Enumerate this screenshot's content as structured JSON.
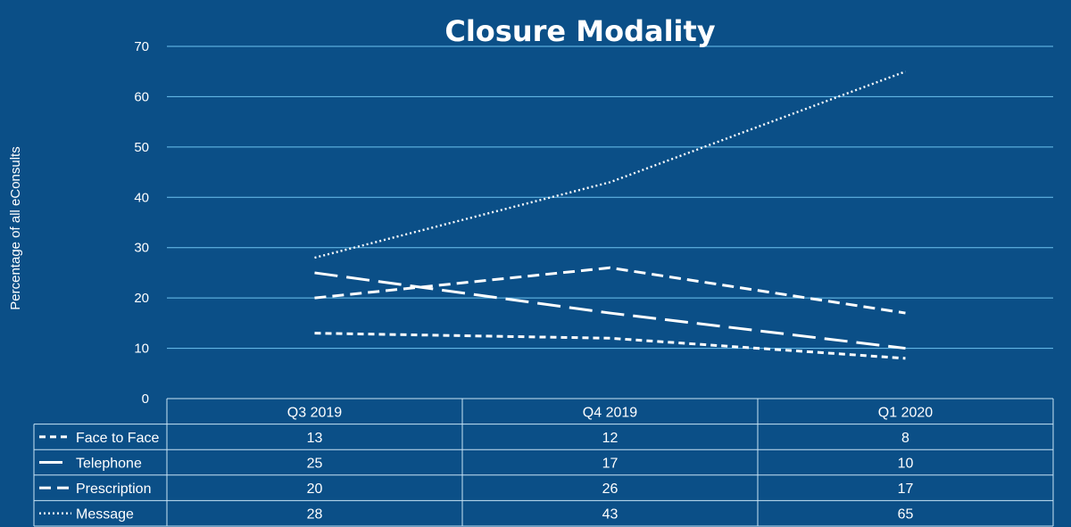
{
  "chart_data": {
    "type": "line",
    "title": "Closure Modality",
    "xlabel": "",
    "ylabel": "Percentage of all eConsults",
    "ylim": [
      0,
      70
    ],
    "yticks": [
      0,
      10,
      20,
      30,
      40,
      50,
      60,
      70
    ],
    "grid": true,
    "legend": "data-table-left",
    "categories": [
      "Q3 2019",
      "Q4 2019",
      "Q1 2020"
    ],
    "series": [
      {
        "name": "Face to Face",
        "values": [
          13,
          12,
          8
        ],
        "style": "short-dash"
      },
      {
        "name": "Telephone",
        "values": [
          25,
          17,
          10
        ],
        "style": "long-dash"
      },
      {
        "name": "Prescription",
        "values": [
          20,
          26,
          17
        ],
        "style": "dash"
      },
      {
        "name": "Message",
        "values": [
          28,
          43,
          65
        ],
        "style": "dot"
      }
    ]
  },
  "colors": {
    "background": "#0b4f87",
    "gridline": "#6ec3f0",
    "line": "#ffffff",
    "table_border": "#c9e4f6"
  }
}
